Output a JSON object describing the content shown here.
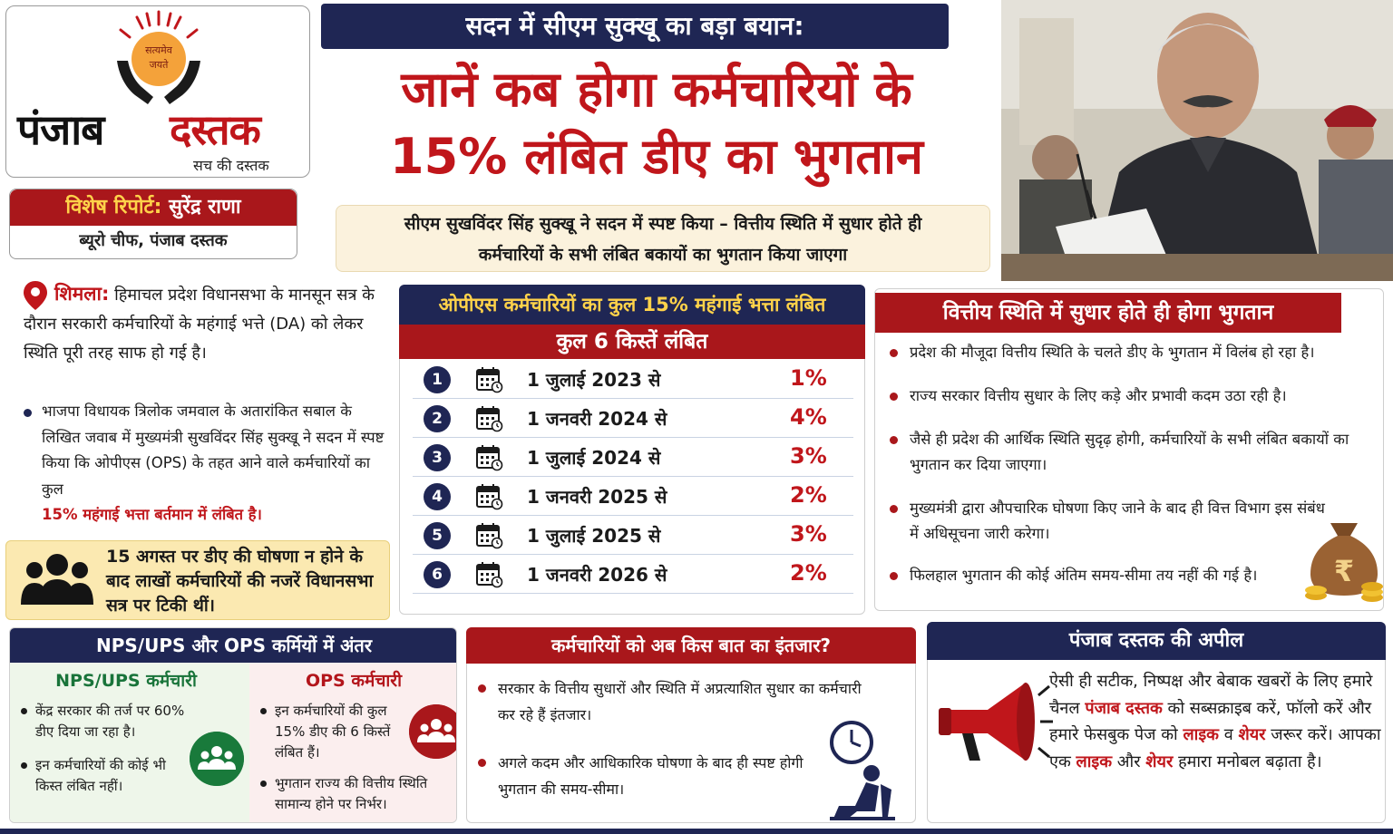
{
  "logo": {
    "emblem_text_1": "सत्यमेव",
    "emblem_text_2": "जयते",
    "name_part1": "पंजाब",
    "name_part2": "दस्तक",
    "tagline": "सच की दस्तक"
  },
  "reporter": {
    "label": "विशेष रिपोर्ट:",
    "name": "सुरेंद्र राणा",
    "designation": "ब्यूरो चीफ, पंजाब दस्तक"
  },
  "header": {
    "kicker": "सदन में सीएम सुक्खू का बड़ा बयान:",
    "headline_line1": "जानें कब होगा कर्मचारियों के",
    "headline_line2": "15% लंबित डीए का भुगतान",
    "subhead_line1": "सीएम सुखविंदर सिंह सुक्खू ने सदन में स्पष्ट किया – वित्तीय स्थिति में सुधार होते ही",
    "subhead_line2": "कर्मचारियों के सभी लंबित बकायों का भुगतान किया जाएगा"
  },
  "story": {
    "dateline": "शिमला:",
    "lead": "हिमाचल प्रदेश विधानसभा के मानसून सत्र के दौरान सरकारी कर्मचारियों के महंगाई भत्ते (DA) को लेकर स्थिति पूरी तरह साफ हो गई है।",
    "bullet_text": "भाजपा विधायक त्रिलोक जमवाल के अतारांकित सबाल के लिखित जवाब में मुख्यमंत्री सुखविंदर सिंह सुक्खू ने सदन में स्पष्ट किया कि ओपीएस (OPS) के तहत आने वाले कर्मचारियों का कुल",
    "bullet_highlight": "15% महंगाई भत्ता बर्तमान में लंबित है।",
    "note": "15 अगस्त पर डीए की घोषणा न होने के बाद लाखों कर्मचारियों की नजरें विधानसभा सत्र पर टिकी थीं।"
  },
  "installments": {
    "title": "ओपीएस कर्मचारियों का कुल 15% महंगाई भत्ता लंबित",
    "subtitle": "कुल 6 किस्तें लंबित",
    "rows": [
      {
        "num": "1",
        "date": "1 जुलाई 2023 से",
        "pct": "1%"
      },
      {
        "num": "2",
        "date": "1 जनवरी 2024 से",
        "pct": "4%"
      },
      {
        "num": "3",
        "date": "1 जुलाई 2024 से",
        "pct": "3%"
      },
      {
        "num": "4",
        "date": "1 जनवरी 2025 से",
        "pct": "2%"
      },
      {
        "num": "5",
        "date": "1 जुलाई 2025 से",
        "pct": "3%"
      },
      {
        "num": "6",
        "date": "1 जनवरी 2026 से",
        "pct": "2%"
      }
    ]
  },
  "finance": {
    "title": "वित्तीय स्थिति में सुधार होते ही होगा भुगतान",
    "items": [
      "प्रदेश की मौजूदा वित्तीय स्थिति के चलते डीए के भुगतान में विलंब हो रहा है।",
      "राज्य सरकार वित्तीय सुधार के लिए कड़े और प्रभावी कदम उठा रही है।",
      "जैसे ही प्रदेश की आर्थिक स्थिति सुदृढ़ होगी, कर्मचारियों के सभी लंबित बकायों का भुगतान कर दिया जाएगा।",
      "मुख्यमंत्री द्वारा औपचारिक घोषणा किए जाने के बाद ही वित्त विभाग इस संबंध में अधिसूचना जारी करेगा।",
      "फिलहाल भुगतान की कोई अंतिम समय-सीमा तय नहीं की गई है।"
    ],
    "currency_symbol": "₹"
  },
  "compare": {
    "title": "NPS/UPS और OPS कर्मियों में अंतर",
    "nps_title": "NPS/UPS कर्मचारी",
    "nps_items": [
      "केंद्र सरकार की तर्ज पर 60% डीए दिया जा रहा है।",
      "इन कर्मचारियों की कोई भी किस्त लंबित नहीं।"
    ],
    "ops_title": "OPS कर्मचारी",
    "ops_items": [
      "इन कर्मचारियों की कुल 15% डीए की 6 किस्तें लंबित हैं।",
      "भुगतान राज्य की वित्तीय स्थिति सामान्य होने पर निर्भर।"
    ]
  },
  "wait": {
    "title": "कर्मचारियों को अब किस बात का इंतजार?",
    "items": [
      "सरकार के वित्तीय सुधारों और स्थिति में अप्रत्याशित सुधार का कर्मचारी कर रहे हैं इंतजार।",
      "अगले कदम और आधिकारिक घोषणा के बाद ही स्पष्ट होगी भुगतान की समय-सीमा।"
    ]
  },
  "appeal": {
    "title": "पंजाब दस्तक की अपील",
    "t1": "ऐसी ही सटीक, निष्पक्ष और बेबाक खबरों के लिए हमारे चैनल",
    "brand": "पंजाब दस्तक",
    "t2": "को सब्सक्राइब करें, फॉलो करें और हमारे फेसबुक पेज को",
    "like1": "लाइक",
    "t3": "व",
    "share1": "शेयर",
    "t4": "जरूर करें। आपका एक",
    "like2": "लाइक",
    "t5": "और",
    "share2": "शेयर",
    "t6": "हमारा मनोबल बढ़ाता है।"
  },
  "colors": {
    "navy": "#1f2654",
    "red": "#a9171b",
    "green": "#197a3b",
    "gold": "#ffd24a"
  }
}
